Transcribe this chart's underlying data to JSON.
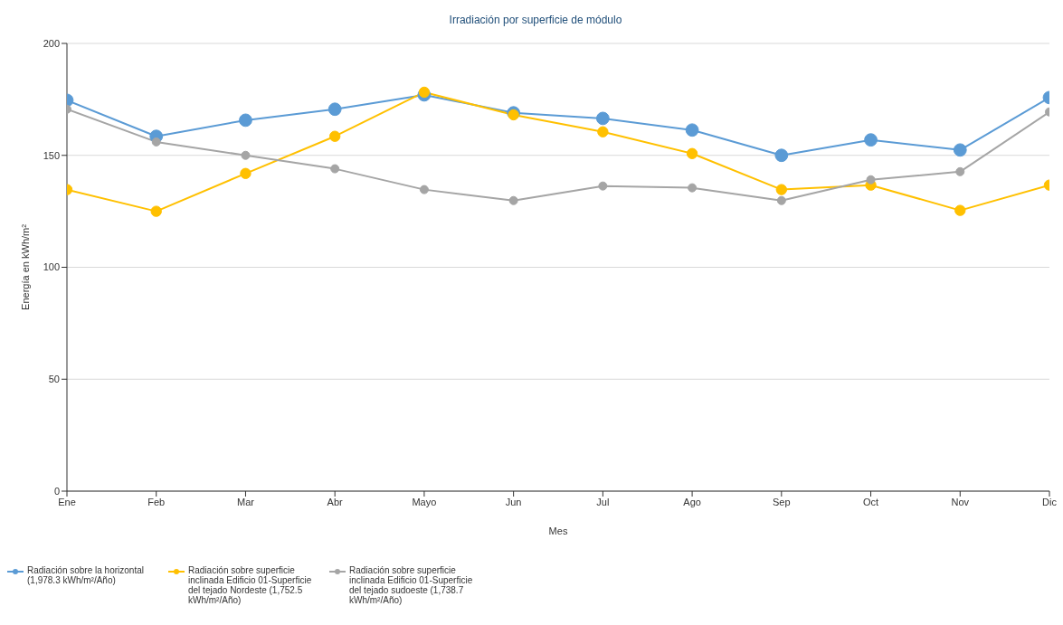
{
  "chart_data": {
    "type": "line",
    "title": "Irradiación por superficie de módulo",
    "xlabel": "Mes",
    "ylabel": "Energía en kWh/m²",
    "categories": [
      "Ene",
      "Feb",
      "Mar",
      "Abr",
      "Mayo",
      "Jun",
      "Jul",
      "Ago",
      "Sep",
      "Oct",
      "Nov",
      "Dic"
    ],
    "series": [
      {
        "name": "Radiación sobre la horizontal (1,978.3 kWh/m²/Año)",
        "color": "#5b9bd5",
        "values": [
          174.6,
          158.5,
          165.7,
          170.6,
          177,
          169,
          166.5,
          161.3,
          150,
          156.9,
          152.4,
          175.8
        ]
      },
      {
        "name": "Radiación sobre superficie inclinada Edificio 01-Superficie del tejado Nordeste (1,752.5 kWh/m²/Año)",
        "color": "#ffc000",
        "values": [
          134.7,
          125,
          141.9,
          158.5,
          178.2,
          168.1,
          160.5,
          150.8,
          134.7,
          136.7,
          125.4,
          136.7
        ]
      },
      {
        "name": "Radiación sobre superficie inclinada Edificio 01-Superficie del tejado sudoeste (1,738.7 kWh/m²/Año)",
        "color": "#a5a5a5",
        "values": [
          170.6,
          156,
          150,
          144,
          134.7,
          129.8,
          136.3,
          135.5,
          129.8,
          139.1,
          142.7,
          169.4
        ]
      }
    ],
    "ylim": [
      0,
      200
    ],
    "yticks": [
      0,
      50,
      100,
      150,
      200
    ],
    "grid": "y",
    "legend": "bottom",
    "marker": "circle",
    "line_style": "solid"
  }
}
